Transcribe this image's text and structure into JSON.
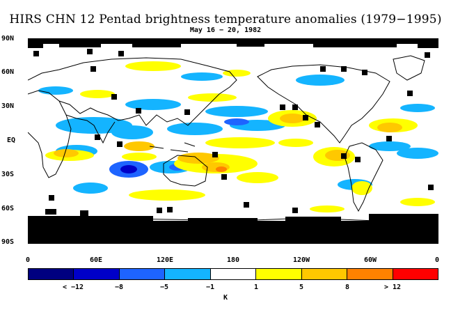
{
  "title": "HIRS CHN 12 Pentad brightness temperature anomalies (1979−1995)",
  "subtitle": "May 16 − 20, 1982",
  "lat_labels": [
    "90N",
    "60N",
    "30N",
    "EQ",
    "30S",
    "60S",
    "90S"
  ],
  "lon_labels": [
    "0",
    "60E",
    "120E",
    "180",
    "120W",
    "60W",
    "0"
  ],
  "colorbar": {
    "colors": [
      "#000080",
      "#0000c8",
      "#1e64ff",
      "#14b4ff",
      "#ffffff",
      "#ffff00",
      "#ffc800",
      "#ff8200",
      "#ff0000"
    ],
    "labels": [
      "< −12",
      "−8",
      "−5",
      "−1",
      "1",
      "5",
      "8",
      "> 12"
    ],
    "unit": "K"
  },
  "legend_colors": {
    "missing": "#000000",
    "coast": "#000000"
  }
}
